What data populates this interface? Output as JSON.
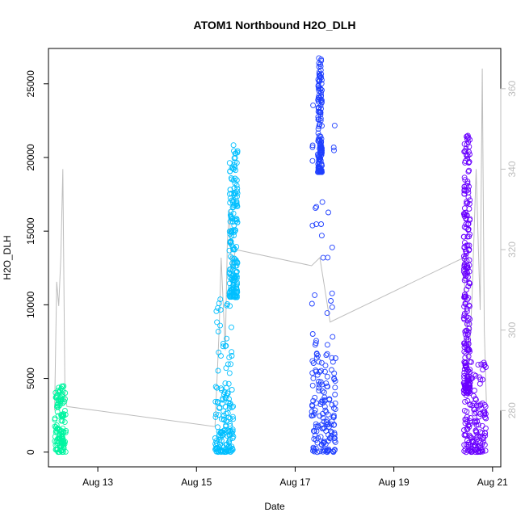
{
  "chart_data": {
    "type": "scatter",
    "title": "ATOM1 Northbound H2O_DLH",
    "xlabel": "Date",
    "ylabel": "H2O_DLH",
    "y2label": "",
    "xlim": [
      "2023-08-12T00:00",
      "2023-08-21T04:00"
    ],
    "ylim": [
      -1000,
      27400
    ],
    "y2lim": [
      266,
      370
    ],
    "x_ticks": [
      {
        "date": "2023-08-13T00:00",
        "label": "Aug 13"
      },
      {
        "date": "2023-08-15T00:00",
        "label": "Aug 15"
      },
      {
        "date": "2023-08-17T00:00",
        "label": "Aug 17"
      },
      {
        "date": "2023-08-19T00:00",
        "label": "Aug 19"
      },
      {
        "date": "2023-08-21T00:00",
        "label": "Aug 21"
      }
    ],
    "y_ticks": [
      0,
      5000,
      10000,
      15000,
      20000,
      25000
    ],
    "y_tick_labels": [
      "0",
      "5000",
      "10000",
      "15000",
      "20000",
      "25000"
    ],
    "y2_ticks": [
      280,
      300,
      320,
      340,
      360
    ],
    "y2_tick_labels": [
      "280",
      "300",
      "320",
      "340",
      "360"
    ],
    "grid": false,
    "legend": "none",
    "series": [
      {
        "color": "#00f5a0",
        "clusters": [
          {
            "x_start": "2023-08-12T03:00",
            "x_end": "2023-08-12T08:30",
            "y_min": 0,
            "y_max": 4500,
            "sparse_max": 4500
          }
        ]
      },
      {
        "color": "#00bfff",
        "clusters": [
          {
            "x_start": "2023-08-15T09:00",
            "x_end": "2023-08-15T18:00",
            "y_min": 0,
            "y_max": 4500,
            "sparse_max": 11000
          },
          {
            "x_start": "2023-08-15T16:00",
            "x_end": "2023-08-15T20:00",
            "y_min": 10500,
            "y_max": 21000,
            "sparse_max": 21000
          }
        ]
      },
      {
        "color": "#1f3fff",
        "clusters": [
          {
            "x_start": "2023-08-17T08:00",
            "x_end": "2023-08-17T20:00",
            "y_min": 0,
            "y_max": 7000,
            "sparse_max": 24500
          },
          {
            "x_start": "2023-08-17T11:00",
            "x_end": "2023-08-17T13:00",
            "y_min": 19000,
            "y_max": 26800,
            "sparse_max": 26800
          }
        ]
      },
      {
        "color": "#6a00ff",
        "clusters": [
          {
            "x_start": "2023-08-20T10:00",
            "x_end": "2023-08-20T21:00",
            "y_min": 0,
            "y_max": 3500,
            "sparse_max": 6500
          },
          {
            "x_start": "2023-08-20T10:00",
            "x_end": "2023-08-20T13:00",
            "y_min": 4000,
            "y_max": 21500,
            "sparse_max": 21500
          }
        ]
      }
    ],
    "overlay_line": {
      "axis": "right",
      "color": "#bdbdbd",
      "points": [
        [
          "2023-08-12T03:00",
          280
        ],
        [
          "2023-08-12T04:00",
          312
        ],
        [
          "2023-08-12T05:00",
          306
        ],
        [
          "2023-08-12T06:00",
          318
        ],
        [
          "2023-08-12T07:00",
          340
        ],
        [
          "2023-08-12T08:00",
          284
        ],
        [
          "2023-08-12T09:00",
          281
        ],
        [
          "2023-08-15T09:00",
          276
        ],
        [
          "2023-08-15T11:00",
          300
        ],
        [
          "2023-08-15T12:00",
          318
        ],
        [
          "2023-08-15T14:00",
          295
        ],
        [
          "2023-08-15T15:00",
          322
        ],
        [
          "2023-08-15T16:00",
          330
        ],
        [
          "2023-08-15T17:00",
          315
        ],
        [
          "2023-08-15T19:00",
          320
        ],
        [
          "2023-08-17T08:00",
          316
        ],
        [
          "2023-08-17T12:00",
          318
        ],
        [
          "2023-08-17T17:00",
          302
        ],
        [
          "2023-08-20T10:00",
          318
        ],
        [
          "2023-08-20T12:00",
          286
        ],
        [
          "2023-08-20T14:00",
          308
        ],
        [
          "2023-08-20T16:00",
          340
        ],
        [
          "2023-08-20T18:00",
          305
        ],
        [
          "2023-08-20T19:00",
          365
        ],
        [
          "2023-08-20T20:00",
          300
        ],
        [
          "2023-08-20T21:00",
          282
        ]
      ]
    }
  }
}
